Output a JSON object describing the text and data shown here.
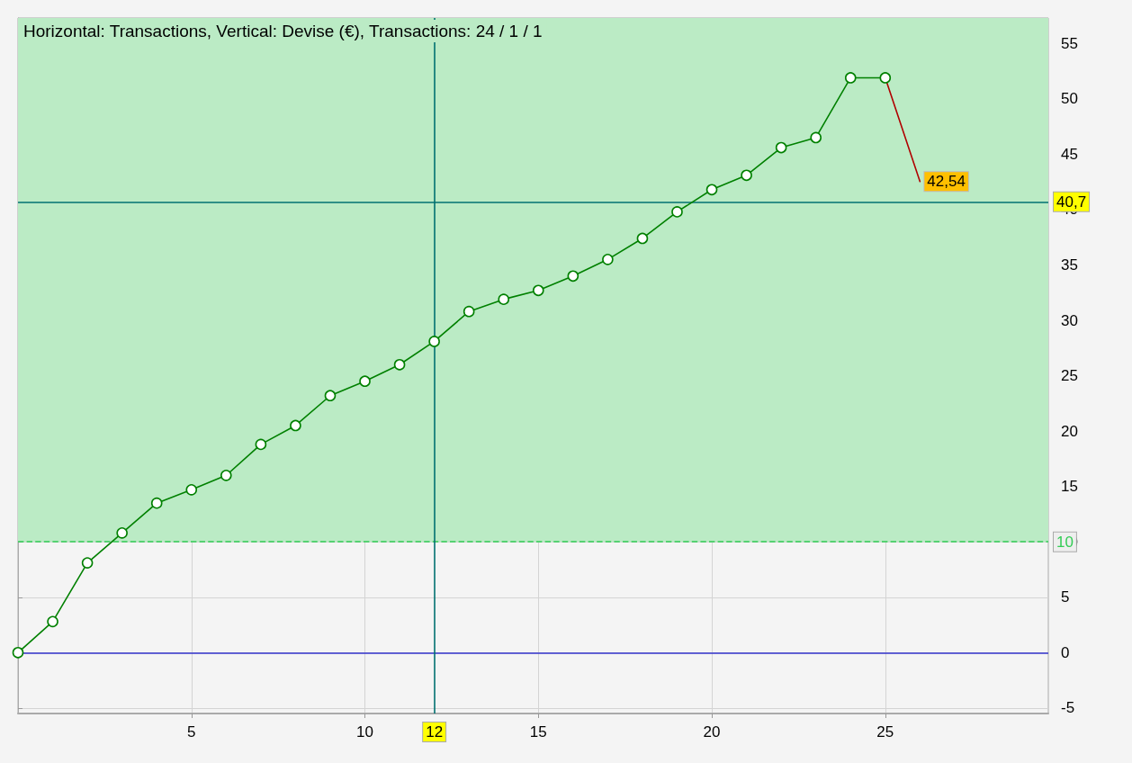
{
  "chart_data": {
    "type": "line",
    "title": "Horizontal: Transactions, Vertical: Devise (€), Transactions: 24 / 1 / 1",
    "series": [
      {
        "color": "#008000",
        "x": [
          0,
          1,
          2,
          3,
          4,
          5,
          6,
          7,
          8,
          9,
          10,
          11,
          12,
          13,
          14,
          15,
          16,
          17,
          18,
          19,
          20,
          21,
          22,
          23,
          24,
          25
        ],
        "values": [
          0,
          2.8,
          8.1,
          10.8,
          13.5,
          14.7,
          16.0,
          18.8,
          20.5,
          23.2,
          24.5,
          26.0,
          28.1,
          30.8,
          31.9,
          32.7,
          34.0,
          35.5,
          37.4,
          39.8,
          41.8,
          43.1,
          45.6,
          46.5,
          51.9,
          51.9
        ]
      },
      {
        "color": "#b00000",
        "x": [
          25,
          26
        ],
        "values": [
          51.9,
          42.54
        ],
        "value_labels": [
          null,
          "42,54"
        ],
        "marker": "none"
      }
    ],
    "xlim": [
      0,
      29.7
    ],
    "xticks": [
      5,
      10,
      15,
      20,
      25
    ],
    "ylim": [
      -5.5,
      57.3
    ],
    "yticks": [
      -5,
      0,
      5,
      10,
      15,
      20,
      25,
      30,
      35,
      40,
      45,
      50,
      55
    ],
    "grid": true,
    "marker": "circle",
    "line_style": "solid",
    "ref_lines": [
      {
        "axis": "y",
        "value": 0,
        "label": null,
        "color": "#3333cc"
      },
      {
        "axis": "y",
        "value": 10,
        "label": "10",
        "color": "#33cc55",
        "line_style": "dashed"
      },
      {
        "axis": "y",
        "value": 40.7,
        "label": "40,7",
        "color": "#007070"
      },
      {
        "axis": "x",
        "value": 12,
        "label": "12",
        "color": "#007070"
      }
    ],
    "bands": [
      {
        "axis": "y",
        "from": 10,
        "to": 57.3,
        "label": null,
        "color": "#bbebc5"
      }
    ]
  }
}
